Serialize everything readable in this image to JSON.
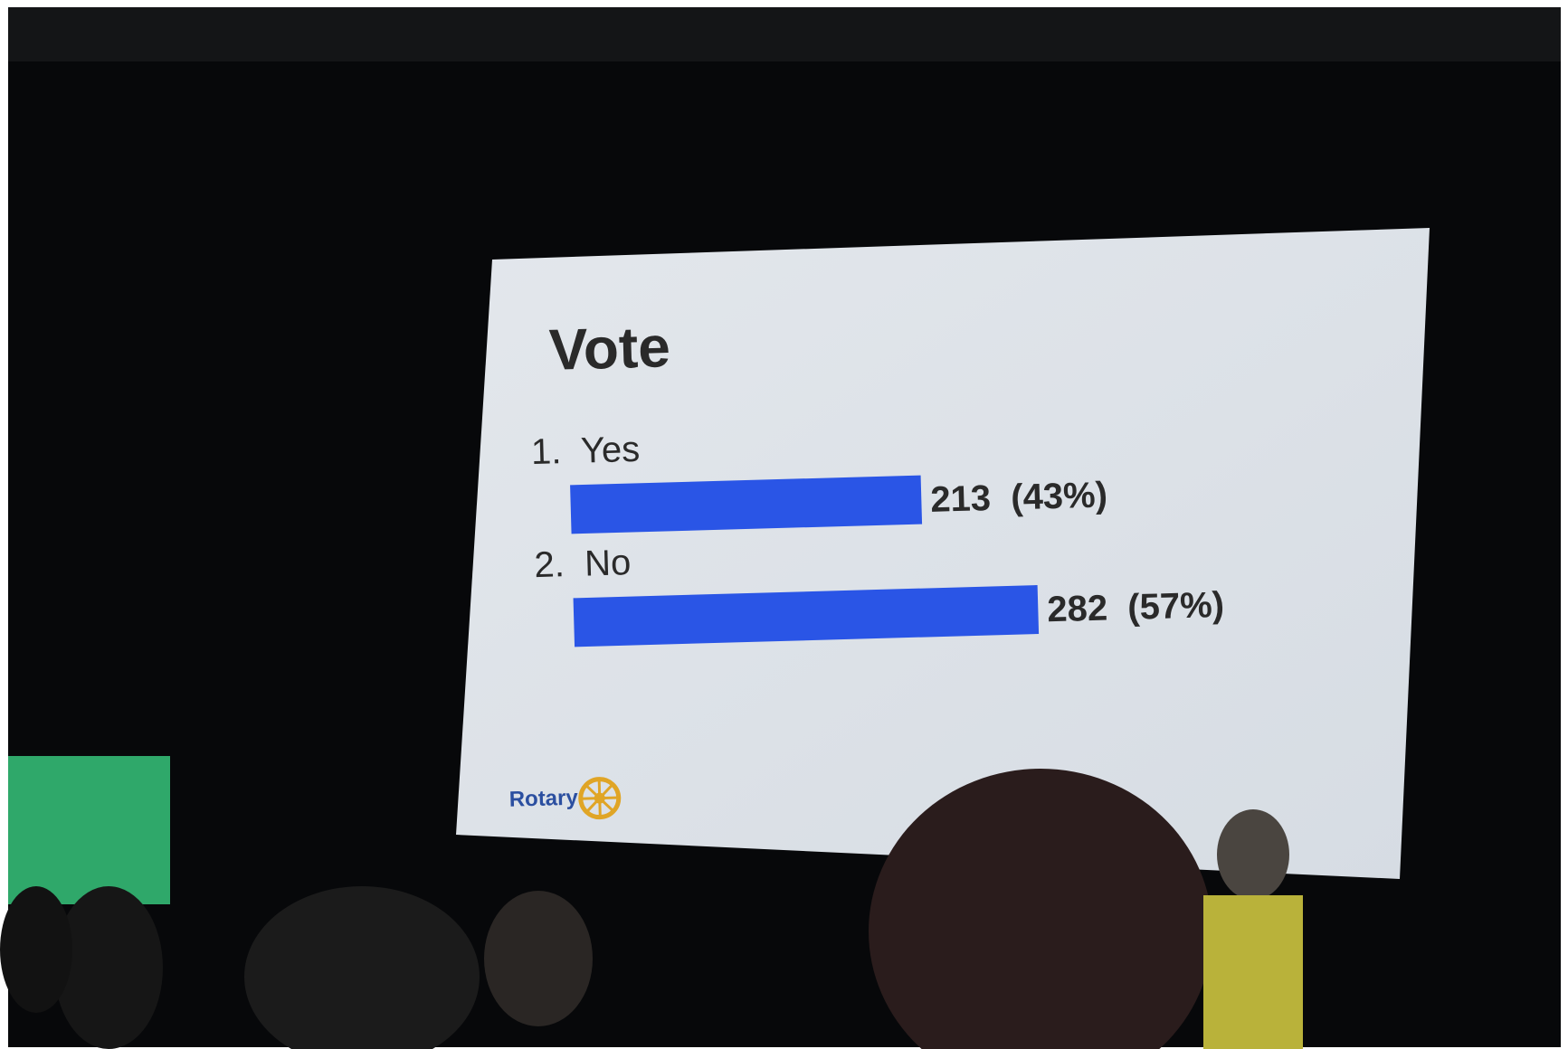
{
  "chart_data": {
    "type": "bar",
    "title": "Vote",
    "categories": [
      "1.  Yes",
      "2.  No"
    ],
    "values": [
      213,
      282
    ],
    "value_labels": [
      "213  (43%)",
      "282  (57%)"
    ],
    "color": "#2a55e6",
    "logo_text": "Rotary"
  }
}
